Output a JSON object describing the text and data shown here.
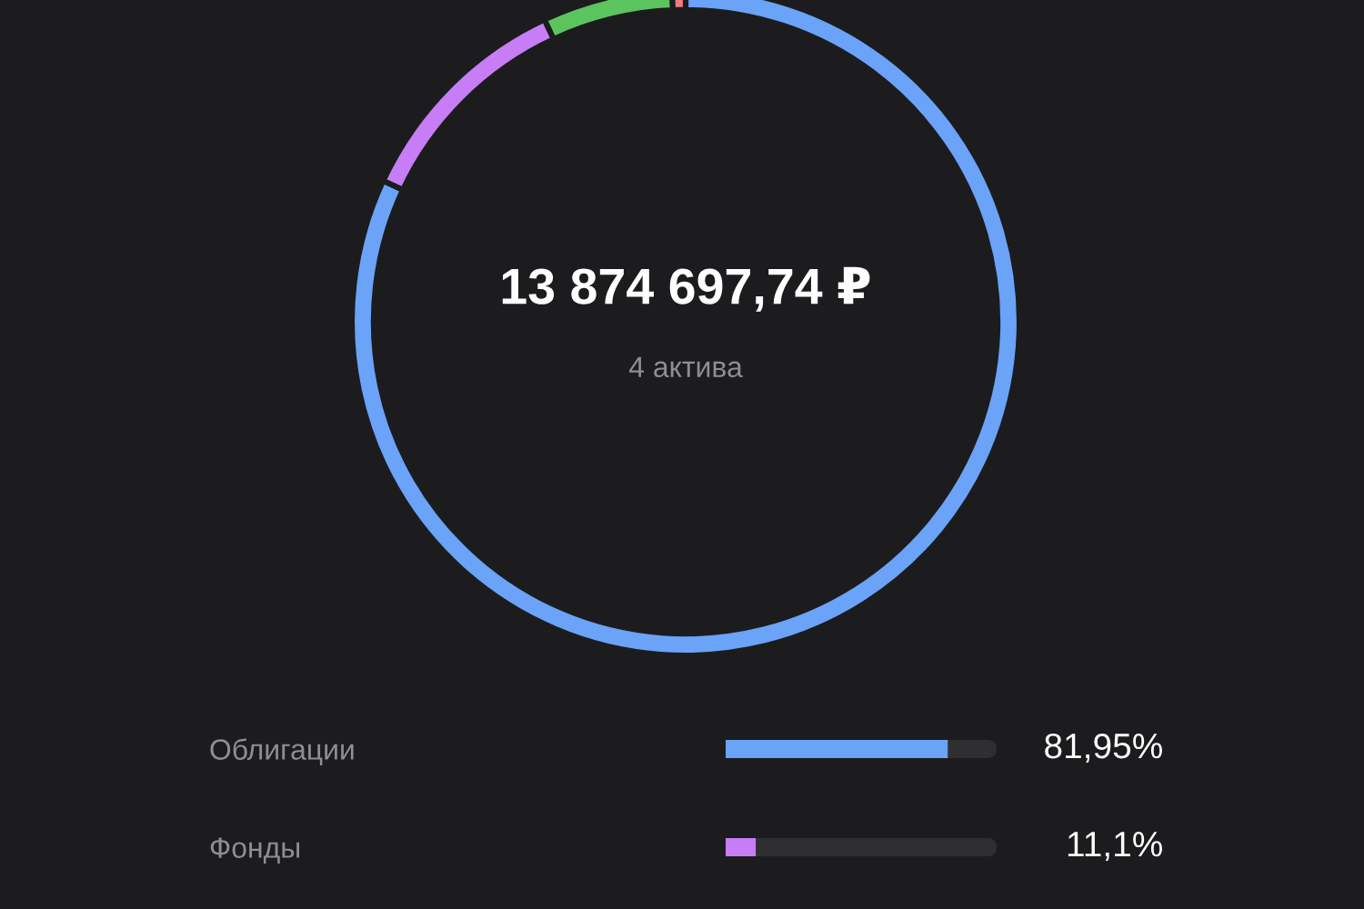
{
  "chart_data": [
    {
      "type": "donut",
      "categories": [
        null,
        null,
        null,
        null
      ],
      "values": [
        81.95,
        11.1,
        6.3,
        0.65
      ],
      "colors": [
        "#6aa3f8",
        "#c77df5",
        "#5cc45f",
        "#f07a80"
      ],
      "annotations": [
        "13 874 697,74 ₽",
        "4 актива"
      ]
    },
    {
      "type": "bar",
      "orientation": "horizontal",
      "categories": [
        "Облигации",
        "Фонды"
      ],
      "values": [
        81.95,
        11.1
      ],
      "colors": [
        "#6aa3f8",
        "#c77df5"
      ],
      "xlim": [
        0,
        100
      ],
      "value_labels": [
        "81,95%",
        "11,1%"
      ],
      "tick_labels": "y"
    }
  ]
}
